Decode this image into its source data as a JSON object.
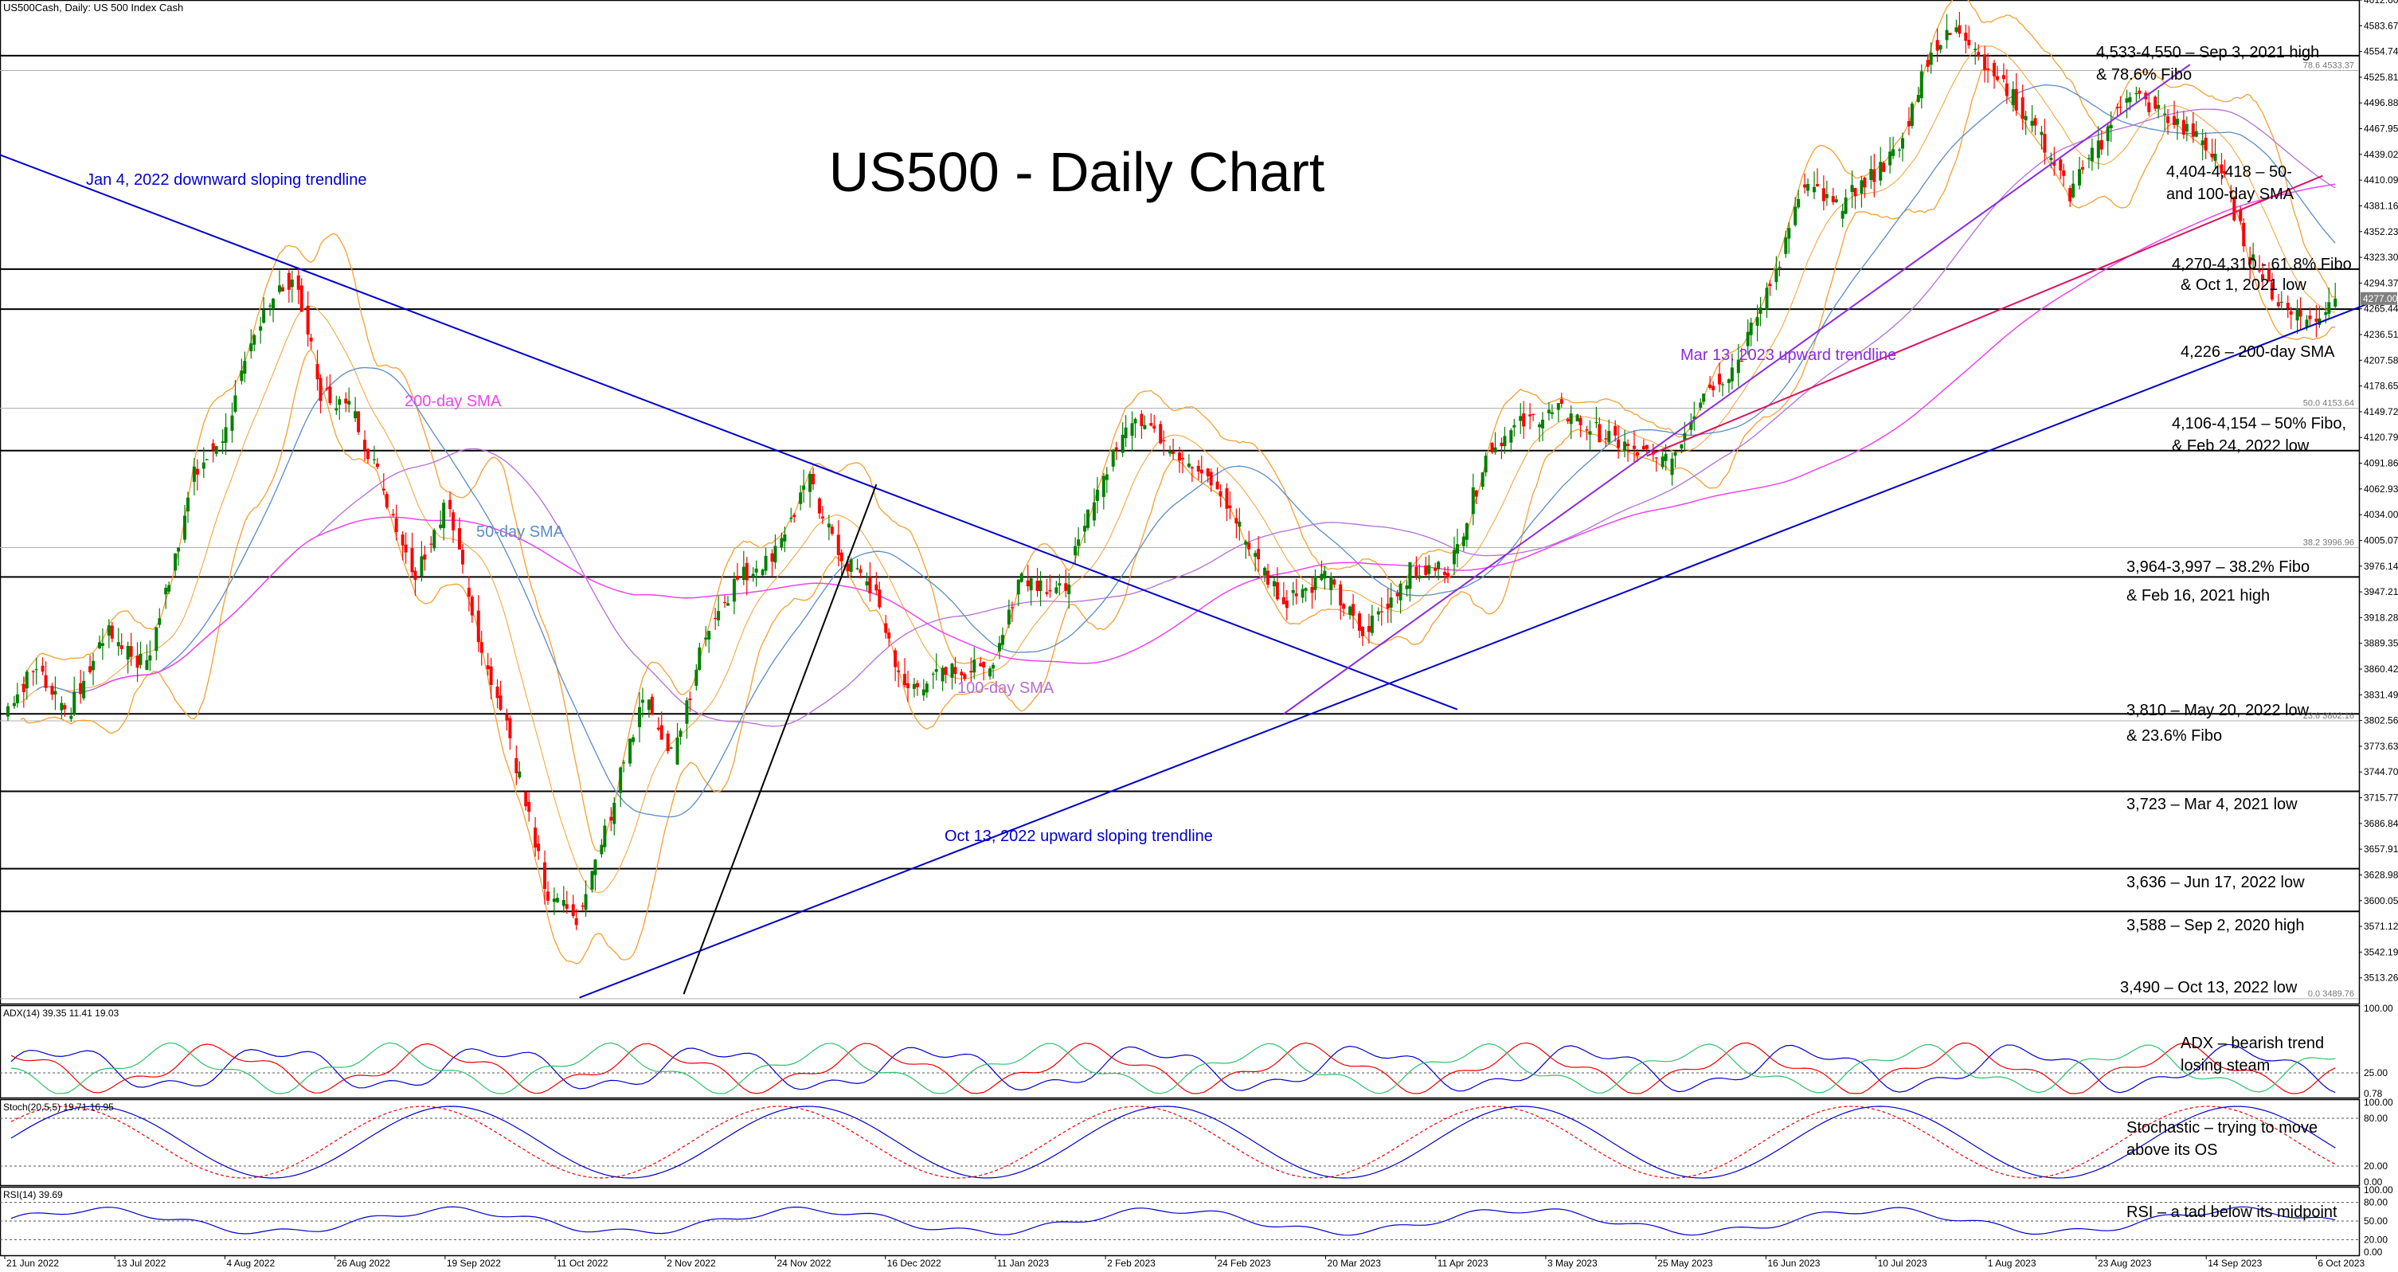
{
  "header": "US500Cash, Daily:  US 500 Index Cash",
  "chart_data": {
    "type": "candlestick",
    "title": "US500 - Daily Chart",
    "colors": {
      "up": "#008000",
      "down": "#ff0000",
      "trend": "#0000cd",
      "sma200": "#ee44ee",
      "sma100": "#b46ed8",
      "sma50": "#5a8cc8",
      "bollinger": "#f5a030",
      "level": "#000000",
      "ema_pink": "#e0115f"
    },
    "x_ticks": [
      "21 Jun 2022",
      "13 Jul 2022",
      "4 Aug 2022",
      "26 Aug 2022",
      "19 Sep 2022",
      "11 Oct 2022",
      "2 Nov 2022",
      "24 Nov 2022",
      "16 Dec 2022",
      "11 Jan 2023",
      "2 Feb 2023",
      "24 Feb 2023",
      "20 Mar 2023",
      "11 Apr 2023",
      "3 May 2023",
      "25 May 2023",
      "16 Jun 2023",
      "10 Jul 2023",
      "1 Aug 2023",
      "23 Aug 2023",
      "14 Sep 2023",
      "6 Oct 2023"
    ],
    "y_ticks": [
      "4612.60",
      "4583.67",
      "4554.74",
      "4525.81",
      "4496.88",
      "4467.95",
      "4439.02",
      "4410.09",
      "4381.16",
      "4352.23",
      "4323.30",
      "4294.37",
      "4265.44",
      "4236.51",
      "4207.58",
      "4178.65",
      "4149.72",
      "4120.79",
      "4091.86",
      "4062.93",
      "4034.00",
      "4005.07",
      "3976.14",
      "3947.21",
      "3918.28",
      "3889.35",
      "3860.42",
      "3831.49",
      "3802.56",
      "3773.63",
      "3744.70",
      "3715.77",
      "3686.84",
      "3657.91",
      "3628.98",
      "3600.05",
      "3571.12",
      "3542.19",
      "3513.26"
    ],
    "ylim": [
      3484.33,
      4612.6
    ],
    "current_price": "4277.00",
    "current_price_value": 4277,
    "horizontal_levels": [
      {
        "value": 4550,
        "tag": ""
      },
      {
        "value": 4533.37,
        "tag": "78.6 4533.37"
      },
      {
        "value": 4310,
        "tag": ""
      },
      {
        "value": 4265,
        "tag": ""
      },
      {
        "value": 4153.64,
        "tag": "50.0 4153.64"
      },
      {
        "value": 4106,
        "tag": ""
      },
      {
        "value": 3996.96,
        "tag": "38.2 3996.96"
      },
      {
        "value": 3964,
        "tag": ""
      },
      {
        "value": 3810,
        "tag": ""
      },
      {
        "value": 3802.16,
        "tag": "23.6 3802.16"
      },
      {
        "value": 3723,
        "tag": ""
      },
      {
        "value": 3636,
        "tag": ""
      },
      {
        "value": 3588,
        "tag": ""
      },
      {
        "value": 3489.76,
        "tag": "0.0 3489.76"
      }
    ],
    "trendlines": [
      {
        "label": "Jan 4, 2022 downward sloping trendline",
        "from": [
          -10,
          4450
        ],
        "to": [
          460,
          3815
        ]
      },
      {
        "label": "Oct 13, 2022 upward sloping trendline",
        "from": [
          182,
          3491
        ],
        "to": [
          749,
          4272
        ]
      },
      {
        "label": "Mar 13, 2023 upward trendline",
        "from": [
          405,
          3810
        ],
        "to": [
          692,
          4540
        ]
      },
      {
        "label": "",
        "from": [
          215,
          3495
        ],
        "to": [
          276,
          4068
        ]
      },
      {
        "label": "",
        "from": [
          520,
          4100
        ],
        "to": [
          734,
          4415
        ]
      }
    ],
    "close_path": [
      [
        0,
        3812
      ],
      [
        10,
        3865
      ],
      [
        20,
        3810
      ],
      [
        32,
        3902
      ],
      [
        45,
        3862
      ],
      [
        60,
        4078
      ],
      [
        70,
        4127
      ],
      [
        82,
        4268
      ],
      [
        92,
        4305
      ],
      [
        100,
        4170
      ],
      [
        110,
        4152
      ],
      [
        118,
        4080
      ],
      [
        130,
        3968
      ],
      [
        140,
        4050
      ],
      [
        150,
        3900
      ],
      [
        160,
        3782
      ],
      [
        172,
        3600
      ],
      [
        182,
        3580
      ],
      [
        192,
        3700
      ],
      [
        202,
        3830
      ],
      [
        212,
        3760
      ],
      [
        222,
        3905
      ],
      [
        232,
        3962
      ],
      [
        242,
        3985
      ],
      [
        255,
        4070
      ],
      [
        265,
        3985
      ],
      [
        275,
        3950
      ],
      [
        285,
        3837
      ],
      [
        300,
        3858
      ],
      [
        312,
        3862
      ],
      [
        322,
        3968
      ],
      [
        335,
        3945
      ],
      [
        345,
        4052
      ],
      [
        358,
        4150
      ],
      [
        370,
        4110
      ],
      [
        385,
        4060
      ],
      [
        395,
        3990
      ],
      [
        405,
        3938
      ],
      [
        418,
        3965
      ],
      [
        430,
        3900
      ],
      [
        445,
        3970
      ],
      [
        458,
        3975
      ],
      [
        470,
        4110
      ],
      [
        482,
        4140
      ],
      [
        493,
        4150
      ],
      [
        503,
        4130
      ],
      [
        515,
        4108
      ],
      [
        527,
        4090
      ],
      [
        538,
        4175
      ],
      [
        548,
        4200
      ],
      [
        558,
        4280
      ],
      [
        570,
        4405
      ],
      [
        580,
        4378
      ],
      [
        590,
        4410
      ],
      [
        600,
        4445
      ],
      [
        610,
        4560
      ],
      [
        620,
        4580
      ],
      [
        632,
        4520
      ],
      [
        642,
        4475
      ],
      [
        654,
        4395
      ],
      [
        664,
        4455
      ],
      [
        672,
        4510
      ],
      [
        682,
        4488
      ],
      [
        690,
        4470
      ],
      [
        700,
        4440
      ],
      [
        710,
        4332
      ],
      [
        720,
        4273
      ],
      [
        730,
        4250
      ],
      [
        738,
        4277
      ]
    ],
    "indicators": [
      {
        "name": "ADX(14) 39.35 11.41 19.03",
        "levels": [
          "25.00"
        ],
        "ticks": [
          "100.00",
          "25.00",
          "0.78"
        ],
        "ylim": [
          0,
          100
        ]
      },
      {
        "name": "Stoch(20,5,5) 19.71 16.95",
        "levels": [
          "80.00",
          "20.00"
        ],
        "ticks": [
          "100.00",
          "80.00",
          "20.00",
          "0.00"
        ],
        "ylim": [
          0,
          100
        ]
      },
      {
        "name": "RSI(14) 39.69",
        "levels": [
          "80.00",
          "50.00",
          "20.00"
        ],
        "ticks": [
          "100.00",
          "80.00",
          "50.00",
          "20.00",
          "0.00"
        ],
        "ylim": [
          0,
          100
        ]
      }
    ],
    "annotations": [
      {
        "text": "4,533-4,550 – Sep 3, 2021 high",
        "panel": "price"
      },
      {
        "text": "& 78.6% Fibo",
        "panel": "price"
      },
      {
        "text": "4,404-4,418 – 50-",
        "panel": "price"
      },
      {
        "text": "and 100-day SMA",
        "panel": "price"
      },
      {
        "text": "4,270-4,310 - 61.8% Fibo",
        "panel": "price"
      },
      {
        "text": "& Oct 1, 2021 low",
        "panel": "price"
      },
      {
        "text": "4,226 – 200-day SMA",
        "panel": "price"
      },
      {
        "text": "4,106-4,154 – 50% Fibo,",
        "panel": "price"
      },
      {
        "text": "& Feb 24, 2022 low",
        "panel": "price"
      },
      {
        "text": "3,964-3,997 – 38.2% Fibo",
        "panel": "price"
      },
      {
        "text": "& Feb 16, 2021 high",
        "panel": "price"
      },
      {
        "text": "3,810 – May 20, 2022 low",
        "panel": "price"
      },
      {
        "text": "& 23.6% Fibo",
        "panel": "price"
      },
      {
        "text": "3,723 – Mar 4, 2021 low",
        "panel": "price"
      },
      {
        "text": "3,636 – Jun 17, 2022 low",
        "panel": "price"
      },
      {
        "text": "3,588 – Sep 2, 2020 high",
        "panel": "price"
      },
      {
        "text": "3,490 – Oct 13, 2022 low",
        "panel": "price"
      },
      {
        "text": "Jan 4, 2022 downward sloping trendline",
        "panel": "price"
      },
      {
        "text": "Oct 13, 2022 upward sloping trendline",
        "panel": "price"
      },
      {
        "text": "Mar 13, 2023 upward trendline",
        "panel": "price"
      },
      {
        "text": "200-day SMA",
        "panel": "price"
      },
      {
        "text": "50-day SMA",
        "panel": "price"
      },
      {
        "text": "100-day SMA",
        "panel": "price"
      },
      {
        "text": "ADX – bearish trend",
        "panel": "adx"
      },
      {
        "text": "losing steam",
        "panel": "adx"
      },
      {
        "text": "Stochastic – trying to move",
        "panel": "stoch"
      },
      {
        "text": "above its OS",
        "panel": "stoch"
      },
      {
        "text": "RSI – a tad below its midpoint",
        "panel": "rsi"
      }
    ]
  }
}
